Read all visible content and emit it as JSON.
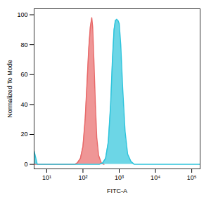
{
  "chart_data": {
    "type": "area",
    "x_label": "FITC-A",
    "y_label": "Normalized To Mode",
    "log": "x",
    "grid": false,
    "xlim": [
      4.5,
      170000
    ],
    "xticks": [
      {
        "value": 10,
        "label": "10¹"
      },
      {
        "value": 100,
        "label": "10²"
      },
      {
        "value": 1000,
        "label": "10³"
      },
      {
        "value": 10000,
        "label": "10⁴"
      },
      {
        "value": 100000,
        "label": "10⁵"
      }
    ],
    "ylim": [
      -3,
      104
    ],
    "yticks": [
      0,
      20,
      40,
      60,
      80,
      100
    ],
    "series": [
      {
        "color": "#e86a6a",
        "x": [
          4.5,
          60,
          70,
          85,
          100,
          115,
          130,
          145,
          160,
          175,
          185,
          200,
          220,
          240,
          270,
          320,
          380
        ],
        "values": [
          0,
          0,
          1,
          4,
          12,
          30,
          55,
          78,
          92,
          98,
          92,
          70,
          40,
          18,
          6,
          1,
          0
        ]
      },
      {
        "color": "#2ec4dc",
        "x": [
          4.5,
          5.5,
          280,
          350,
          420,
          500,
          580,
          650,
          720,
          780,
          850,
          930,
          1000,
          1100,
          1250,
          1450,
          1700,
          2100,
          2600,
          170000
        ],
        "values": [
          9,
          0,
          0,
          1,
          4,
          15,
          40,
          70,
          90,
          96,
          97,
          96,
          94,
          80,
          50,
          22,
          7,
          2,
          0,
          0
        ]
      }
    ]
  }
}
